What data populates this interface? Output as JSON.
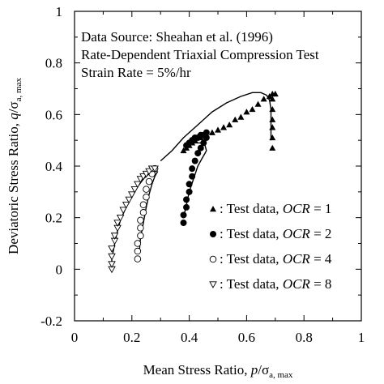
{
  "chart_data": {
    "type": "scatter",
    "annotations": [
      "Data Source: Sheahan et al. (1996)",
      "Rate-Dependent Triaxial Compression Test",
      "Strain Rate = 5%/hr"
    ],
    "xlabel": {
      "main": "Mean Stress Ratio, ",
      "var": "p",
      "slash": "/σ",
      "sub": "a, max"
    },
    "ylabel": {
      "main": "Deviatoric Stress Ratio, ",
      "var": "q",
      "slash": "/σ",
      "sub": "a, max"
    },
    "xlim": [
      0,
      1
    ],
    "ylim": [
      -0.2,
      1
    ],
    "xticks": [
      0,
      0.2,
      0.4,
      0.6,
      0.8,
      1
    ],
    "xtick_labels": [
      "0",
      "0.2",
      "0.4",
      "0.6",
      "0.8",
      "1"
    ],
    "yticks": [
      -0.2,
      0,
      0.2,
      0.4,
      0.6,
      0.8,
      1
    ],
    "ytick_labels": [
      "-0.2",
      "0",
      "0.2",
      "0.4",
      "0.6",
      "0.8",
      "1"
    ],
    "grid": false,
    "legend_position": "right",
    "series": [
      {
        "name": ": Test data,  OCR = 1",
        "label_prefix": ": Test data,  ",
        "label_var": "OCR",
        "label_eq": " = 1",
        "marker": "triangle-up-filled",
        "points": [
          [
            0.38,
            0.46
          ],
          [
            0.39,
            0.47
          ],
          [
            0.4,
            0.48
          ],
          [
            0.41,
            0.49
          ],
          [
            0.42,
            0.5
          ],
          [
            0.44,
            0.51
          ],
          [
            0.46,
            0.52
          ],
          [
            0.48,
            0.53
          ],
          [
            0.5,
            0.54
          ],
          [
            0.52,
            0.55
          ],
          [
            0.54,
            0.56
          ],
          [
            0.56,
            0.58
          ],
          [
            0.58,
            0.59
          ],
          [
            0.6,
            0.61
          ],
          [
            0.62,
            0.62
          ],
          [
            0.64,
            0.64
          ],
          [
            0.66,
            0.66
          ],
          [
            0.68,
            0.67
          ],
          [
            0.69,
            0.68
          ],
          [
            0.7,
            0.68
          ],
          [
            0.69,
            0.66
          ],
          [
            0.69,
            0.62
          ],
          [
            0.69,
            0.58
          ],
          [
            0.69,
            0.55
          ],
          [
            0.69,
            0.51
          ],
          [
            0.69,
            0.47
          ]
        ]
      },
      {
        "name": ": Test data,  OCR = 2",
        "label_prefix": ": Test data,  ",
        "label_var": "OCR",
        "label_eq": " = 2",
        "marker": "circle-filled",
        "points": [
          [
            0.38,
            0.18
          ],
          [
            0.38,
            0.21
          ],
          [
            0.39,
            0.24
          ],
          [
            0.39,
            0.27
          ],
          [
            0.4,
            0.3
          ],
          [
            0.4,
            0.33
          ],
          [
            0.41,
            0.36
          ],
          [
            0.41,
            0.39
          ],
          [
            0.42,
            0.42
          ],
          [
            0.43,
            0.45
          ],
          [
            0.44,
            0.47
          ],
          [
            0.45,
            0.49
          ],
          [
            0.46,
            0.51
          ],
          [
            0.46,
            0.53
          ],
          [
            0.45,
            0.52
          ],
          [
            0.44,
            0.52
          ],
          [
            0.43,
            0.51
          ],
          [
            0.42,
            0.51
          ],
          [
            0.41,
            0.5
          ],
          [
            0.4,
            0.49
          ],
          [
            0.39,
            0.48
          ]
        ]
      },
      {
        "name": ": Test data,  OCR = 4",
        "label_prefix": ": Test data,  ",
        "label_var": "OCR",
        "label_eq": " = 4",
        "marker": "circle-open",
        "points": [
          [
            0.22,
            0.04
          ],
          [
            0.22,
            0.07
          ],
          [
            0.22,
            0.1
          ],
          [
            0.23,
            0.13
          ],
          [
            0.23,
            0.16
          ],
          [
            0.23,
            0.19
          ],
          [
            0.24,
            0.22
          ],
          [
            0.24,
            0.25
          ],
          [
            0.25,
            0.28
          ],
          [
            0.25,
            0.31
          ],
          [
            0.26,
            0.34
          ],
          [
            0.27,
            0.37
          ],
          [
            0.28,
            0.39
          ]
        ]
      },
      {
        "name": ": Test data,  OCR = 8",
        "label_prefix": ": Test data,  ",
        "label_var": "OCR",
        "label_eq": " = 8",
        "marker": "triangle-down-open",
        "points": [
          [
            0.13,
            0.0
          ],
          [
            0.13,
            0.02
          ],
          [
            0.13,
            0.05
          ],
          [
            0.13,
            0.08
          ],
          [
            0.14,
            0.11
          ],
          [
            0.14,
            0.13
          ],
          [
            0.15,
            0.16
          ],
          [
            0.15,
            0.18
          ],
          [
            0.16,
            0.2
          ],
          [
            0.17,
            0.23
          ],
          [
            0.18,
            0.25
          ],
          [
            0.19,
            0.27
          ],
          [
            0.2,
            0.29
          ],
          [
            0.21,
            0.31
          ],
          [
            0.22,
            0.33
          ],
          [
            0.23,
            0.35
          ],
          [
            0.24,
            0.36
          ],
          [
            0.25,
            0.37
          ],
          [
            0.26,
            0.38
          ],
          [
            0.27,
            0.39
          ],
          [
            0.28,
            0.39
          ]
        ]
      }
    ],
    "fit_curves": [
      {
        "points": [
          [
            0.3,
            0.42
          ],
          [
            0.34,
            0.46
          ],
          [
            0.38,
            0.51
          ],
          [
            0.43,
            0.56
          ],
          [
            0.48,
            0.61
          ],
          [
            0.53,
            0.645
          ],
          [
            0.58,
            0.67
          ],
          [
            0.62,
            0.685
          ],
          [
            0.65,
            0.685
          ],
          [
            0.67,
            0.675
          ],
          [
            0.68,
            0.655
          ],
          [
            0.685,
            0.62
          ],
          [
            0.685,
            0.56
          ],
          [
            0.685,
            0.5
          ]
        ]
      },
      {
        "points": [
          [
            0.38,
            0.2
          ],
          [
            0.39,
            0.25
          ],
          [
            0.4,
            0.3
          ],
          [
            0.415,
            0.35
          ],
          [
            0.43,
            0.4
          ],
          [
            0.445,
            0.43
          ],
          [
            0.455,
            0.45
          ],
          [
            0.46,
            0.46
          ],
          [
            0.455,
            0.48
          ],
          [
            0.44,
            0.49
          ],
          [
            0.42,
            0.49
          ],
          [
            0.4,
            0.48
          ]
        ]
      },
      {
        "points": [
          [
            0.225,
            0.06
          ],
          [
            0.23,
            0.12
          ],
          [
            0.24,
            0.18
          ],
          [
            0.25,
            0.24
          ],
          [
            0.26,
            0.29
          ],
          [
            0.27,
            0.33
          ],
          [
            0.28,
            0.36
          ],
          [
            0.29,
            0.38
          ]
        ]
      },
      {
        "points": [
          [
            0.13,
            0.0
          ],
          [
            0.13,
            0.04
          ],
          [
            0.14,
            0.1
          ],
          [
            0.15,
            0.15
          ],
          [
            0.16,
            0.19
          ],
          [
            0.18,
            0.24
          ],
          [
            0.2,
            0.28
          ],
          [
            0.22,
            0.32
          ],
          [
            0.24,
            0.35
          ],
          [
            0.26,
            0.37
          ],
          [
            0.28,
            0.38
          ]
        ]
      }
    ]
  }
}
